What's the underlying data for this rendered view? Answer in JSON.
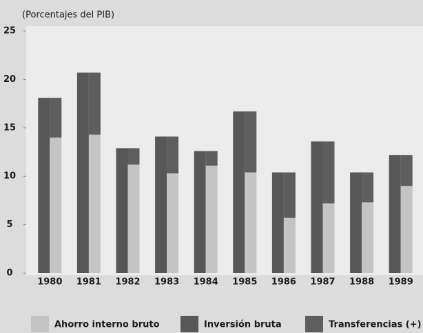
{
  "chart_data": {
    "type": "bar",
    "y_label": "(Porcentajes del PIB)",
    "categories": [
      "1980",
      "1981",
      "1982",
      "1983",
      "1984",
      "1985",
      "1986",
      "1987",
      "1988",
      "1989"
    ],
    "series": [
      {
        "name": "Ahorro interno bruto",
        "color": "#c4c4c4",
        "values": [
          14.0,
          14.3,
          11.2,
          10.3,
          11.1,
          10.4,
          5.7,
          7.2,
          7.3,
          9.0
        ]
      },
      {
        "name": "Inversión bruta",
        "color": "#575757",
        "values": [
          18.1,
          20.7,
          12.9,
          14.1,
          12.6,
          16.7,
          10.4,
          13.6,
          10.4,
          12.2
        ]
      },
      {
        "name": "Transferencias (+)",
        "color": "#5e5e5e",
        "values": [
          4.1,
          6.4,
          1.7,
          3.8,
          1.5,
          6.3,
          4.7,
          6.4,
          3.1,
          3.2
        ]
      }
    ],
    "ylim": [
      0,
      25
    ],
    "yticks": [
      0,
      5,
      10,
      15,
      20,
      25
    ],
    "grid": false
  }
}
